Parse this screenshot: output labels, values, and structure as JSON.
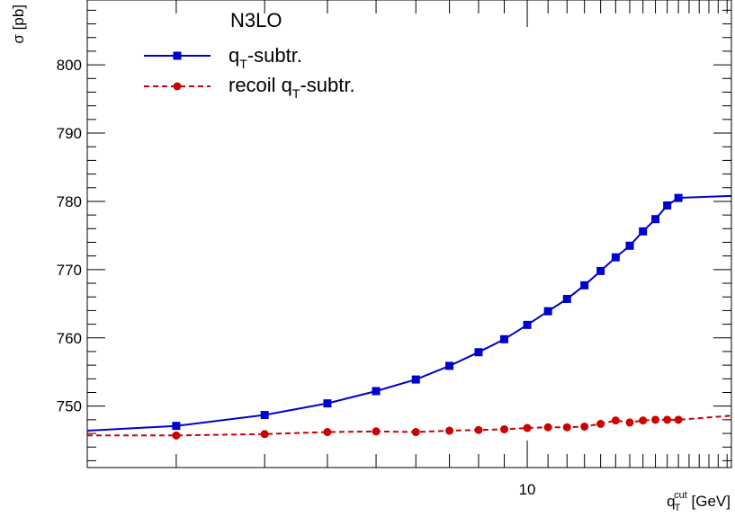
{
  "chart_data": {
    "type": "line",
    "title": "",
    "ylabel": "σ [pb]",
    "xlabel": {
      "main": "q",
      "sub": "T",
      "sup": "cut",
      "unit": " [GeV]"
    },
    "xscale": "log",
    "xlim": [
      1.33,
      25.5
    ],
    "ylim": [
      741,
      809.5
    ],
    "x_ticks": [
      {
        "value": 10,
        "label": "10"
      }
    ],
    "y_ticks": [
      {
        "value": 750,
        "label": "750"
      },
      {
        "value": 760,
        "label": "760"
      },
      {
        "value": 770,
        "label": "770"
      },
      {
        "value": 780,
        "label": "780"
      },
      {
        "value": 790,
        "label": "790"
      },
      {
        "value": 800,
        "label": "800"
      }
    ],
    "legend": {
      "header": "N3LO",
      "position": "top-left",
      "entries": [
        {
          "pre": "q",
          "sub": "T",
          "post": "-subtr."
        },
        {
          "pre": "recoil q",
          "sub": "T",
          "post": "-subtr."
        }
      ]
    },
    "series": [
      {
        "color": "#0000cc",
        "marker": "square",
        "line": "solid",
        "x": [
          2,
          3,
          4,
          5,
          6,
          7,
          8,
          9,
          10,
          11,
          12,
          13,
          14,
          15,
          16,
          17,
          18,
          19,
          20
        ],
        "y": [
          747.1,
          748.7,
          750.4,
          752.2,
          753.9,
          755.9,
          757.9,
          759.8,
          761.9,
          763.9,
          765.7,
          767.7,
          769.8,
          771.8,
          773.5,
          775.6,
          777.4,
          779.4,
          780.5
        ],
        "curve": [
          [
            1.33,
            746.4
          ],
          [
            2,
            747.1
          ],
          [
            3,
            748.7
          ],
          [
            4,
            750.4
          ],
          [
            5,
            752.2
          ],
          [
            6,
            753.9
          ],
          [
            7,
            755.9
          ],
          [
            8,
            757.9
          ],
          [
            9,
            759.8
          ],
          [
            10,
            761.9
          ],
          [
            11,
            763.9
          ],
          [
            12,
            765.7
          ],
          [
            13,
            767.7
          ],
          [
            14,
            769.8
          ],
          [
            15,
            771.8
          ],
          [
            16,
            773.5
          ],
          [
            17,
            775.6
          ],
          [
            18,
            777.4
          ],
          [
            19,
            779.4
          ],
          [
            20,
            780.5
          ],
          [
            25.5,
            780.8
          ]
        ]
      },
      {
        "color": "#cc0000",
        "marker": "circle",
        "line": "dashed",
        "x": [
          2,
          3,
          4,
          5,
          6,
          7,
          8,
          9,
          10,
          11,
          12,
          13,
          14,
          15,
          16,
          17,
          18,
          19,
          20
        ],
        "y": [
          745.7,
          745.9,
          746.2,
          746.3,
          746.2,
          746.4,
          746.5,
          746.6,
          746.8,
          746.9,
          746.9,
          747.0,
          747.4,
          747.9,
          747.6,
          747.9,
          748.0,
          748.0,
          748.0
        ],
        "curve": [
          [
            1.33,
            745.7
          ],
          [
            2,
            745.7
          ],
          [
            3,
            745.9
          ],
          [
            4,
            746.2
          ],
          [
            5,
            746.3
          ],
          [
            6,
            746.2
          ],
          [
            7,
            746.4
          ],
          [
            8,
            746.5
          ],
          [
            9,
            746.6
          ],
          [
            10,
            746.8
          ],
          [
            11,
            746.9
          ],
          [
            12,
            746.9
          ],
          [
            13,
            747.0
          ],
          [
            14,
            747.4
          ],
          [
            15,
            747.9
          ],
          [
            16,
            747.6
          ],
          [
            17,
            747.9
          ],
          [
            18,
            748.0
          ],
          [
            19,
            748.0
          ],
          [
            20,
            748.0
          ],
          [
            25.5,
            748.6
          ]
        ]
      }
    ]
  }
}
